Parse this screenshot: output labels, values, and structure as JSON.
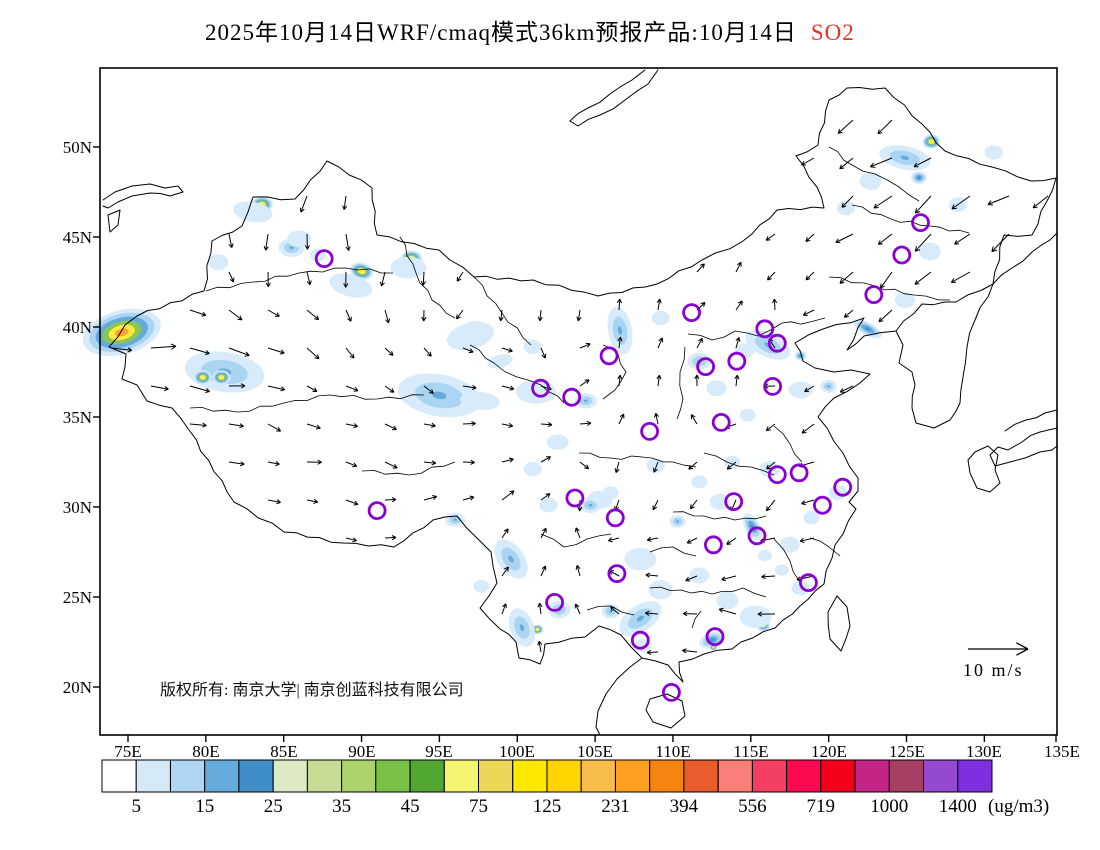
{
  "title": {
    "main": "2025年10月14日WRF/cmaq模式36km预报产品:10月14日",
    "pollutant": "SO2",
    "pollutant_color": "#e83228"
  },
  "axes": {
    "lat_labels": [
      "50N",
      "45N",
      "40N",
      "35N",
      "30N",
      "25N",
      "20N"
    ],
    "lon_labels": [
      "75E",
      "80E",
      "85E",
      "90E",
      "95E",
      "100E",
      "105E",
      "110E",
      "115E",
      "120E",
      "125E",
      "130E",
      "135E"
    ]
  },
  "colorbar": {
    "levels": [
      "5",
      "15",
      "25",
      "35",
      "45",
      "75",
      "125",
      "231",
      "394",
      "556",
      "719",
      "1000",
      "1400"
    ],
    "unit": "(ug/m3)",
    "colors": [
      "#ffffff",
      "#d4eaf9",
      "#aed6f2",
      "#64aadc",
      "#3f8ec8",
      "#dde9c3",
      "#c5dc92",
      "#acd26b",
      "#79c247",
      "#52a733",
      "#f4f470",
      "#ecd657",
      "#ffe800",
      "#ffd400",
      "#f6bd4b",
      "#ffa023",
      "#f58511",
      "#e85c2e",
      "#f97f78",
      "#f43f63",
      "#fb0a50",
      "#f3001d",
      "#c32486",
      "#a63f63",
      "#9349d0",
      "#7e2fe0"
    ]
  },
  "footer": {
    "copyright": "版权所有: 南京大学| 南京创蓝科技有限公司"
  },
  "wind_legend": {
    "label": "10 m/s"
  },
  "chart_data": {
    "type": "map-contour",
    "pollutant": "SO2",
    "units": "ug/m3",
    "marker_color": "#8a00d4",
    "hotspot_format": "[lon,lat,radius_px,intensity(1=light blue..5=orange core,25=dark blue),angle_deg,aspect]",
    "hotspots": [
      [
        74.6,
        39.7,
        40,
        5,
        -15,
        0.55
      ],
      [
        81.2,
        37.5,
        40,
        2,
        8,
        0.5
      ],
      [
        79.8,
        37.2,
        9,
        4,
        0,
        0.8
      ],
      [
        81.0,
        37.2,
        9,
        4,
        0,
        0.8
      ],
      [
        83.6,
        46.8,
        11,
        4,
        0,
        0.75
      ],
      [
        85.5,
        44.4,
        13,
        2,
        0,
        0.7
      ],
      [
        87.2,
        44.0,
        8,
        1,
        0,
        0.8
      ],
      [
        90.0,
        43.1,
        12,
        4,
        15,
        0.7
      ],
      [
        89.3,
        42.3,
        22,
        1,
        15,
        0.5
      ],
      [
        93.2,
        43.8,
        11,
        4,
        0,
        0.75
      ],
      [
        93.0,
        43.3,
        18,
        1,
        0,
        0.6
      ],
      [
        97.1,
        39.8,
        15,
        4,
        -15,
        0.6
      ],
      [
        97.0,
        39.5,
        24,
        1,
        -15,
        0.55
      ],
      [
        94.8,
        36.3,
        22,
        5,
        8,
        0.6
      ],
      [
        95.0,
        36.2,
        42,
        2,
        10,
        0.5
      ],
      [
        97.6,
        35.9,
        20,
        1,
        5,
        0.45
      ],
      [
        101.5,
        36.5,
        13,
        4,
        0,
        0.8
      ],
      [
        100.4,
        36.4,
        7,
        3,
        0,
        0.8
      ],
      [
        101.2,
        36.4,
        20,
        1,
        0,
        0.6
      ],
      [
        106.7,
        40.1,
        17,
        4,
        78,
        0.45
      ],
      [
        106.6,
        39.8,
        24,
        2,
        80,
        0.5
      ],
      [
        104.4,
        35.9,
        11,
        2,
        0,
        0.7
      ],
      [
        126.6,
        50.3,
        9,
        4,
        0,
        0.8
      ],
      [
        124.9,
        49.4,
        26,
        2,
        12,
        0.45
      ],
      [
        125.8,
        48.3,
        8,
        25,
        0,
        0.8
      ],
      [
        116.1,
        39.0,
        24,
        2,
        25,
        0.5
      ],
      [
        114.6,
        38.7,
        10,
        1,
        0,
        0.7
      ],
      [
        122.5,
        39.9,
        16,
        25,
        28,
        0.4
      ],
      [
        99.5,
        27.2,
        13,
        4,
        60,
        0.6
      ],
      [
        99.6,
        27.1,
        22,
        2,
        55,
        0.6
      ],
      [
        100.2,
        23.5,
        12,
        4,
        75,
        0.6
      ],
      [
        101.3,
        23.2,
        6,
        4,
        0,
        0.8
      ],
      [
        100.3,
        23.3,
        20,
        2,
        70,
        0.6
      ],
      [
        107.7,
        23.7,
        15,
        4,
        -38,
        0.5
      ],
      [
        107.9,
        23.8,
        24,
        2,
        -35,
        0.55
      ],
      [
        115.8,
        23.4,
        7,
        3,
        0,
        0.8
      ],
      [
        115.3,
        23.9,
        16,
        1,
        0,
        0.7
      ],
      [
        112.5,
        22.6,
        13,
        25,
        -20,
        0.6
      ],
      [
        112.6,
        22.2,
        4,
        4,
        0,
        0.8
      ],
      [
        115.1,
        28.9,
        15,
        25,
        62,
        0.5
      ],
      [
        110.3,
        29.2,
        8,
        2,
        0,
        0.8
      ],
      [
        107.9,
        27.1,
        16,
        1,
        0,
        0.7
      ],
      [
        105.3,
        30.4,
        13,
        1,
        0,
        0.7
      ],
      [
        109.2,
        25.4,
        12,
        1,
        0,
        0.8
      ],
      [
        111.7,
        26.2,
        10,
        1,
        0,
        0.8
      ],
      [
        113.5,
        24.8,
        11,
        1,
        0,
        0.8
      ],
      [
        117.5,
        27.9,
        10,
        1,
        0,
        0.8
      ],
      [
        118.9,
        29.4,
        8,
        1,
        0,
        0.8
      ],
      [
        120.6,
        30.8,
        9,
        1,
        0,
        0.8
      ],
      [
        116.2,
        32.1,
        10,
        1,
        0,
        0.8
      ],
      [
        113.8,
        32.5,
        8,
        1,
        0,
        0.8
      ],
      [
        111.7,
        31.4,
        8,
        1,
        0,
        0.8
      ],
      [
        83.0,
        46.4,
        20,
        1,
        10,
        0.5
      ],
      [
        86.0,
        44.9,
        12,
        1,
        0,
        0.7
      ],
      [
        80.8,
        43.6,
        10,
        1,
        0,
        0.8
      ],
      [
        111.7,
        38.1,
        12,
        2,
        0,
        0.7
      ],
      [
        112.8,
        36.6,
        10,
        1,
        0,
        0.8
      ],
      [
        114.8,
        35.1,
        8,
        1,
        0,
        0.8
      ],
      [
        118.2,
        36.5,
        12,
        1,
        0,
        0.7
      ],
      [
        120.0,
        36.7,
        8,
        2,
        0,
        0.8
      ],
      [
        124.9,
        41.5,
        10,
        1,
        0,
        0.8
      ],
      [
        126.5,
        44.2,
        11,
        1,
        0,
        0.8
      ],
      [
        128.3,
        46.8,
        9,
        1,
        0,
        0.8
      ],
      [
        130.6,
        49.7,
        9,
        1,
        0,
        0.8
      ],
      [
        122.7,
        48.1,
        11,
        1,
        0,
        0.8
      ],
      [
        121.1,
        46.6,
        9,
        1,
        0,
        0.8
      ],
      [
        109.2,
        40.5,
        9,
        1,
        0,
        0.8
      ],
      [
        98.9,
        38.1,
        13,
        1,
        -15,
        0.5
      ],
      [
        101.0,
        38.9,
        9,
        1,
        0,
        0.8
      ],
      [
        102.6,
        33.6,
        11,
        1,
        0,
        0.7
      ],
      [
        101.0,
        32.1,
        9,
        1,
        0,
        0.8
      ],
      [
        102.0,
        30.1,
        9,
        1,
        0,
        0.8
      ],
      [
        104.7,
        30.1,
        11,
        2,
        0,
        0.7
      ],
      [
        106.0,
        30.8,
        8,
        1,
        0,
        0.8
      ],
      [
        108.9,
        32.3,
        9,
        1,
        0,
        0.8
      ],
      [
        113.0,
        30.3,
        10,
        1,
        0,
        0.8
      ],
      [
        118.2,
        25.5,
        9,
        1,
        0,
        0.8
      ],
      [
        117.0,
        26.5,
        7,
        1,
        0,
        0.8
      ],
      [
        115.9,
        27.3,
        7,
        1,
        0,
        0.8
      ],
      [
        106.0,
        24.2,
        9,
        2,
        0,
        0.8
      ],
      [
        102.7,
        24.3,
        11,
        2,
        0,
        0.8
      ],
      [
        97.7,
        25.6,
        8,
        1,
        0,
        0.8
      ],
      [
        118.2,
        38.4,
        6,
        25,
        0,
        0.8
      ],
      [
        96.0,
        29.3,
        10,
        2,
        0,
        0.7
      ],
      [
        108.1,
        22.3,
        8,
        1,
        0,
        0.8
      ]
    ],
    "city_marker_format": "[lon,lat]",
    "city_markers": [
      [
        87.6,
        43.8
      ],
      [
        125.9,
        45.8
      ],
      [
        124.7,
        44.0
      ],
      [
        122.9,
        41.8
      ],
      [
        111.2,
        40.8
      ],
      [
        115.9,
        39.9
      ],
      [
        116.7,
        39.1
      ],
      [
        105.9,
        38.4
      ],
      [
        114.1,
        38.1
      ],
      [
        112.1,
        37.8
      ],
      [
        116.4,
        36.7
      ],
      [
        101.5,
        36.6
      ],
      [
        103.5,
        36.1
      ],
      [
        113.1,
        34.7
      ],
      [
        108.5,
        34.2
      ],
      [
        91.0,
        29.8
      ],
      [
        118.1,
        31.9
      ],
      [
        116.7,
        31.8
      ],
      [
        120.9,
        31.1
      ],
      [
        119.6,
        30.1
      ],
      [
        113.9,
        30.3
      ],
      [
        103.7,
        30.5
      ],
      [
        106.3,
        29.4
      ],
      [
        112.6,
        27.9
      ],
      [
        115.4,
        28.4
      ],
      [
        106.4,
        26.3
      ],
      [
        118.7,
        25.8
      ],
      [
        102.4,
        24.7
      ],
      [
        107.9,
        22.6
      ],
      [
        112.7,
        22.8
      ],
      [
        109.9,
        19.7
      ]
    ],
    "wind_field_format": "[lon,lat,screen_angle_deg(0=E,90=S),length_px]",
    "wind_field": [
      [
        74,
        45,
        105,
        20
      ],
      [
        80,
        47.5,
        115,
        22
      ],
      [
        86,
        46,
        100,
        20
      ],
      [
        92,
        47,
        115,
        22
      ],
      [
        96,
        48,
        125,
        22
      ],
      [
        75,
        39.5,
        3,
        36
      ],
      [
        80,
        38.5,
        2,
        34
      ],
      [
        85,
        39,
        12,
        26
      ],
      [
        89,
        41,
        50,
        20
      ],
      [
        93,
        42.5,
        115,
        22
      ],
      [
        97,
        42,
        170,
        16
      ],
      [
        78,
        35,
        -8,
        16
      ],
      [
        83,
        33,
        5,
        16
      ],
      [
        87,
        33.5,
        8,
        16
      ],
      [
        91,
        31.5,
        18,
        16
      ],
      [
        94,
        34,
        22,
        18
      ],
      [
        97,
        37.5,
        2,
        28
      ],
      [
        101,
        36.2,
        8,
        24
      ],
      [
        102,
        40,
        115,
        16
      ],
      [
        106.5,
        38.5,
        -80,
        22
      ],
      [
        109,
        36.8,
        -88,
        22
      ],
      [
        111,
        34.5,
        -90,
        20
      ],
      [
        113,
        37.5,
        -55,
        22
      ],
      [
        115.8,
        40,
        -45,
        18
      ],
      [
        112.5,
        40.8,
        -35,
        16
      ],
      [
        119.5,
        41.5,
        130,
        20
      ],
      [
        123,
        44,
        135,
        26
      ],
      [
        126.5,
        47,
        140,
        28
      ],
      [
        124,
        50.5,
        150,
        26
      ],
      [
        129.5,
        50,
        155,
        24
      ],
      [
        131.5,
        45.5,
        140,
        26
      ],
      [
        127,
        42.5,
        135,
        24
      ],
      [
        119.5,
        37.5,
        150,
        20
      ],
      [
        119,
        34,
        155,
        22
      ],
      [
        121,
        31.8,
        165,
        18
      ],
      [
        114,
        33,
        120,
        18
      ],
      [
        113,
        30.5,
        95,
        22
      ],
      [
        116,
        30,
        95,
        20
      ],
      [
        110,
        31,
        90,
        18
      ],
      [
        106.5,
        31,
        95,
        20
      ],
      [
        99,
        31,
        -35,
        26
      ],
      [
        96,
        29,
        -28,
        24
      ],
      [
        101,
        27.5,
        -70,
        18
      ],
      [
        102,
        24,
        -85,
        20
      ],
      [
        104.5,
        26,
        -90,
        18
      ],
      [
        107.5,
        27,
        185,
        18
      ],
      [
        110,
        25.5,
        182,
        20
      ],
      [
        113,
        24,
        186,
        24
      ],
      [
        116.5,
        23.2,
        188,
        24
      ],
      [
        119,
        24.5,
        196,
        22
      ],
      [
        121,
        28,
        172,
        20
      ],
      [
        117.5,
        27,
        182,
        20
      ],
      [
        122,
        24,
        190,
        16
      ],
      [
        110,
        20.5,
        200,
        14
      ],
      [
        115,
        28.5,
        155,
        18
      ],
      [
        118.5,
        31.3,
        160,
        18
      ],
      [
        90,
        44,
        100,
        20
      ],
      [
        85,
        44.5,
        105,
        20
      ]
    ]
  }
}
